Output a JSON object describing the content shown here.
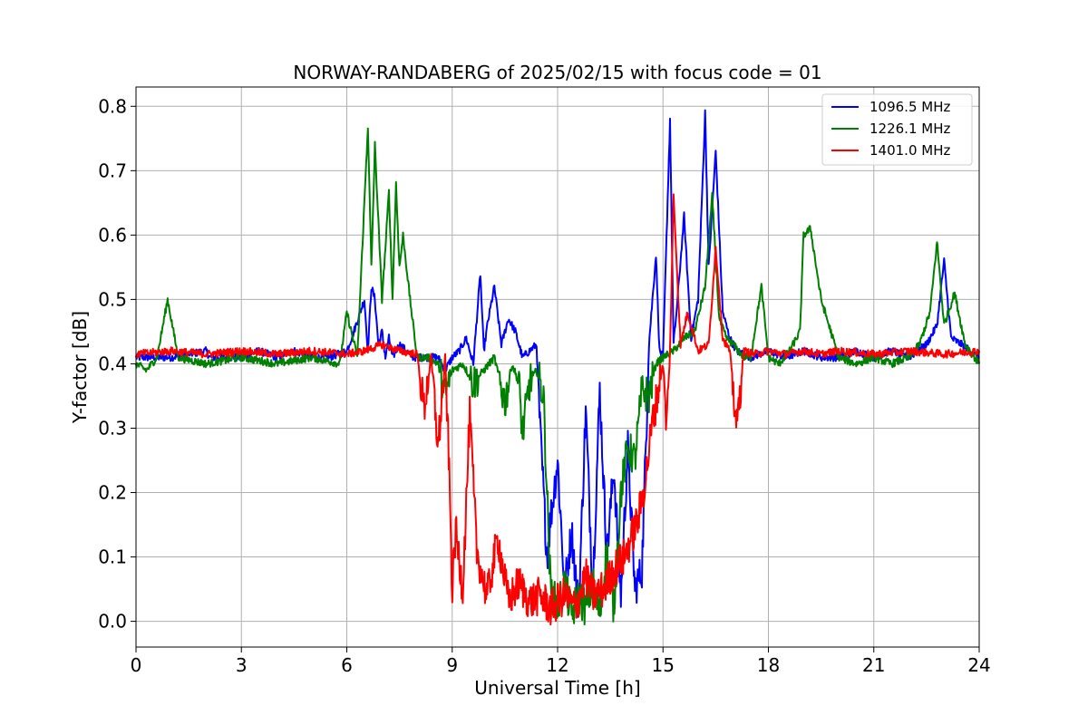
{
  "chart_data": {
    "type": "line",
    "title": "NORWAY-RANDABERG of 2025/02/15 with focus code = 01",
    "xlabel": "Universal Time [h]",
    "ylabel": "Y-factor [dB]",
    "xlim": [
      0,
      24
    ],
    "ylim": [
      -0.04,
      0.83
    ],
    "xticks": [
      0,
      3,
      6,
      9,
      12,
      15,
      18,
      21,
      24
    ],
    "yticks": [
      0.0,
      0.1,
      0.2,
      0.3,
      0.4,
      0.5,
      0.6,
      0.7,
      0.8
    ],
    "ytick_labels": [
      "0.0",
      "0.1",
      "0.2",
      "0.3",
      "0.4",
      "0.5",
      "0.6",
      "0.7",
      "0.8"
    ],
    "grid": true,
    "legend_position": "top-right",
    "series": [
      {
        "name": "1096.5 MHz",
        "color": "#0000ff",
        "x": [
          0,
          1,
          2,
          2.1,
          3,
          3.5,
          4,
          4.5,
          5,
          5.5,
          6,
          6.2,
          6.5,
          6.6,
          6.7,
          6.8,
          6.9,
          7,
          7.1,
          7.2,
          7.3,
          7.5,
          7.7,
          7.9,
          8.2,
          8.6,
          8.8,
          9,
          9.2,
          9.4,
          9.6,
          9.8,
          9.9,
          10,
          10.2,
          10.4,
          10.6,
          10.8,
          11,
          11.2,
          11.4,
          11.5,
          11.6,
          11.7,
          11.8,
          12,
          12.2,
          12.4,
          12.6,
          12.8,
          13,
          13.2,
          13.4,
          13.6,
          13.8,
          14,
          14.2,
          14.4,
          14.6,
          14.8,
          14.9,
          15,
          15.2,
          15.3,
          15.4,
          15.6,
          15.8,
          16,
          16.2,
          16.3,
          16.5,
          16.7,
          16.9,
          17.1,
          17.5,
          18,
          18.5,
          19,
          19.5,
          20,
          20.5,
          21,
          21.5,
          22,
          22.5,
          22.8,
          23,
          23.2,
          23.5,
          24
        ],
        "y": [
          0.41,
          0.41,
          0.42,
          0.41,
          0.41,
          0.42,
          0.41,
          0.42,
          0.41,
          0.41,
          0.42,
          0.45,
          0.5,
          0.42,
          0.52,
          0.5,
          0.43,
          0.45,
          0.41,
          0.44,
          0.41,
          0.43,
          0.42,
          0.41,
          0.41,
          0.41,
          0.39,
          0.41,
          0.42,
          0.44,
          0.4,
          0.54,
          0.42,
          0.46,
          0.52,
          0.43,
          0.47,
          0.45,
          0.41,
          0.42,
          0.43,
          0.3,
          0.2,
          0.1,
          0.16,
          0.25,
          0.05,
          0.14,
          0.02,
          0.33,
          0.05,
          0.36,
          0.1,
          0.24,
          0.04,
          0.27,
          0.05,
          0.08,
          0.43,
          0.57,
          0.42,
          0.41,
          0.78,
          0.43,
          0.49,
          0.63,
          0.44,
          0.5,
          0.79,
          0.55,
          0.73,
          0.48,
          0.44,
          0.42,
          0.41,
          0.42,
          0.41,
          0.42,
          0.41,
          0.41,
          0.42,
          0.41,
          0.42,
          0.41,
          0.43,
          0.46,
          0.56,
          0.44,
          0.43,
          0.41
        ]
      },
      {
        "name": "1226.1 MHz",
        "color": "#008000",
        "x": [
          0,
          0.3,
          0.6,
          0.9,
          1.2,
          2,
          3,
          4,
          5,
          5.8,
          6,
          6.3,
          6.6,
          6.7,
          6.8,
          6.9,
          7,
          7.1,
          7.2,
          7.3,
          7.4,
          7.5,
          7.6,
          7.8,
          8,
          8.3,
          8.6,
          8.8,
          9,
          9.3,
          9.6,
          9.9,
          10.2,
          10.5,
          10.7,
          10.9,
          11,
          11.2,
          11.4,
          11.6,
          11.8,
          12,
          12.2,
          12.4,
          12.6,
          12.8,
          13,
          13.2,
          13.4,
          13.6,
          13.8,
          14,
          14.2,
          14.4,
          14.6,
          14.8,
          15,
          15.3,
          15.6,
          15.9,
          16.2,
          16.4,
          16.6,
          16.8,
          17,
          17.3,
          17.5,
          17.8,
          18,
          18.3,
          18.6,
          18.9,
          19,
          19.2,
          19.5,
          20,
          20.5,
          21,
          21.5,
          22,
          22.3,
          22.6,
          22.8,
          23,
          23.3,
          23.6,
          24
        ],
        "y": [
          0.4,
          0.39,
          0.41,
          0.5,
          0.41,
          0.4,
          0.41,
          0.4,
          0.41,
          0.4,
          0.48,
          0.41,
          0.77,
          0.55,
          0.74,
          0.62,
          0.5,
          0.58,
          0.67,
          0.5,
          0.68,
          0.55,
          0.6,
          0.5,
          0.41,
          0.41,
          0.4,
          0.35,
          0.39,
          0.4,
          0.37,
          0.39,
          0.41,
          0.34,
          0.4,
          0.37,
          0.29,
          0.37,
          0.39,
          0.35,
          0.05,
          0.02,
          0.06,
          0.01,
          0.04,
          0.02,
          0.06,
          0.01,
          0.11,
          0.02,
          0.2,
          0.27,
          0.25,
          0.36,
          0.35,
          0.4,
          0.41,
          0.42,
          0.44,
          0.45,
          0.52,
          0.66,
          0.47,
          0.44,
          0.43,
          0.41,
          0.41,
          0.52,
          0.41,
          0.4,
          0.42,
          0.45,
          0.6,
          0.61,
          0.5,
          0.41,
          0.4,
          0.41,
          0.4,
          0.41,
          0.43,
          0.48,
          0.59,
          0.46,
          0.51,
          0.43,
          0.4
        ]
      },
      {
        "name": "1401.0 MHz",
        "color": "#ff0000",
        "x": [
          0,
          1,
          2,
          3,
          4,
          5,
          6,
          6.5,
          7,
          7.5,
          8,
          8.2,
          8.4,
          8.6,
          8.8,
          8.9,
          9,
          9.1,
          9.3,
          9.5,
          9.7,
          9.9,
          10,
          10.3,
          10.6,
          10.9,
          11.2,
          11.5,
          11.8,
          12,
          12.2,
          12.5,
          12.8,
          13,
          13.3,
          13.6,
          13.9,
          14.1,
          14.3,
          14.5,
          14.7,
          14.9,
          15,
          15.1,
          15.2,
          15.3,
          15.5,
          15.7,
          16,
          16.3,
          16.5,
          16.7,
          16.9,
          17.1,
          17.3,
          17.6,
          18,
          18.5,
          19,
          19.5,
          20,
          21,
          22,
          23,
          24
        ],
        "y": [
          0.415,
          0.42,
          0.415,
          0.42,
          0.415,
          0.42,
          0.415,
          0.42,
          0.43,
          0.42,
          0.415,
          0.33,
          0.41,
          0.27,
          0.41,
          0.26,
          0.05,
          0.14,
          0.05,
          0.32,
          0.11,
          0.06,
          0.04,
          0.13,
          0.03,
          0.06,
          0.03,
          0.04,
          0.02,
          0.03,
          0.04,
          0.02,
          0.07,
          0.04,
          0.05,
          0.08,
          0.1,
          0.13,
          0.16,
          0.22,
          0.31,
          0.37,
          0.4,
          0.3,
          0.42,
          0.66,
          0.43,
          0.48,
          0.42,
          0.43,
          0.58,
          0.44,
          0.42,
          0.3,
          0.42,
          0.415,
          0.42,
          0.415,
          0.42,
          0.415,
          0.42,
          0.415,
          0.42,
          0.415,
          0.42
        ]
      }
    ]
  }
}
